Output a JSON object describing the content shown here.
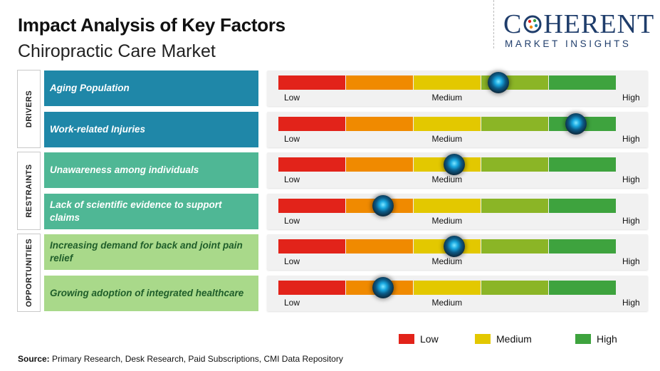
{
  "header": {
    "title": "Impact Analysis of Key Factors",
    "subtitle": "Chiropractic Care Market"
  },
  "logo": {
    "main_left": "C",
    "main_right": "HERENT",
    "sub": "MARKET INSIGHTS"
  },
  "colors": {
    "segments": [
      "#e2231a",
      "#f08a00",
      "#e3c800",
      "#8bb526",
      "#3ea33e"
    ],
    "drivers_box": "#1f87a8",
    "restraints_box": "#4fb795",
    "opportunities_box": "#a9d98a"
  },
  "chart_data": {
    "type": "gauge-scale",
    "title": "Impact Analysis of Key Factors",
    "subtitle": "Chiropractic Care Market",
    "scale_labels": {
      "low": "Low",
      "medium": "Medium",
      "high": "High"
    },
    "scale_range": [
      0,
      1
    ],
    "categories": [
      {
        "name": "DRIVERS",
        "factors": [
          {
            "label": "Aging Population",
            "impact": 0.65
          },
          {
            "label": "Work-related Injuries",
            "impact": 0.88
          }
        ]
      },
      {
        "name": "RESTRAINTS",
        "factors": [
          {
            "label": "Unawareness among individuals",
            "impact": 0.52
          },
          {
            "label": "Lack of scientific evidence to support claims",
            "impact": 0.31
          }
        ]
      },
      {
        "name": "OPPORTUNITIES",
        "factors": [
          {
            "label": "Increasing demand for back and joint pain relief",
            "impact": 0.52
          },
          {
            "label": "Growing adoption of integrated healthcare",
            "impact": 0.31
          }
        ]
      }
    ],
    "legend": [
      {
        "label": "Low",
        "color": "#e2231a"
      },
      {
        "label": "Medium",
        "color": "#e3c800"
      },
      {
        "label": "High",
        "color": "#3ea33e"
      }
    ]
  },
  "footer": {
    "source_label": "Source:",
    "source_text": " Primary Research, Desk Research, Paid Subscriptions, CMI Data Repository"
  }
}
